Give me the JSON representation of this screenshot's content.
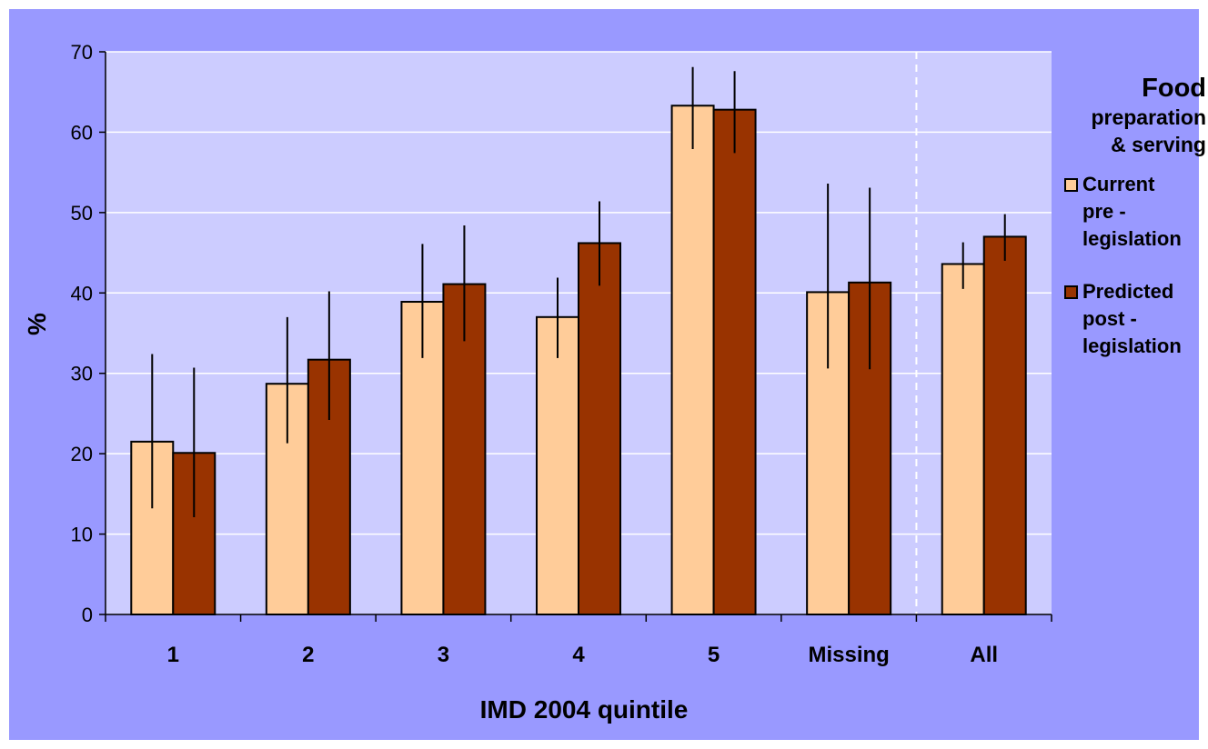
{
  "chart_data": {
    "type": "bar",
    "xlabel": "IMD 2004 quintile",
    "ylabel": "%",
    "ylim": [
      0,
      70
    ],
    "yticks": [
      0,
      10,
      20,
      30,
      40,
      50,
      60,
      70
    ],
    "grid": true,
    "legend_position": "right",
    "categories": [
      "1",
      "2",
      "3",
      "4",
      "5",
      "Missing",
      "All"
    ],
    "separator_before_category": "All",
    "series": [
      {
        "name": "Current pre - legislation",
        "color": "#ffcc99",
        "values": [
          21.5,
          28.7,
          38.9,
          37.0,
          63.3,
          40.1,
          43.6
        ],
        "error_low": [
          13.2,
          21.3,
          31.9,
          31.9,
          57.9,
          30.6,
          40.5
        ],
        "error_high": [
          32.4,
          37.0,
          46.1,
          41.9,
          68.1,
          53.6,
          46.3
        ]
      },
      {
        "name": "Predicted post - legislation",
        "color": "#993300",
        "values": [
          20.1,
          31.7,
          41.1,
          46.2,
          62.8,
          41.3,
          47.0
        ],
        "error_low": [
          12.1,
          24.2,
          34.0,
          40.9,
          57.4,
          30.5,
          44.0
        ],
        "error_high": [
          30.7,
          40.2,
          48.4,
          51.4,
          67.6,
          53.1,
          49.8
        ]
      }
    ]
  },
  "legend": {
    "title_line1": "Food",
    "title_line2": "preparation",
    "title_line3": "& serving",
    "entries": [
      {
        "lines": [
          "Current",
          "pre -",
          "legislation"
        ],
        "color": "#ffcc99"
      },
      {
        "lines": [
          "Predicted",
          "post -",
          "legislation"
        ],
        "color": "#993300"
      }
    ]
  },
  "colors": {
    "background": "#9999ff",
    "plot_area": "#ccccff",
    "gridline": "#ffffff",
    "axis": "#000000"
  }
}
